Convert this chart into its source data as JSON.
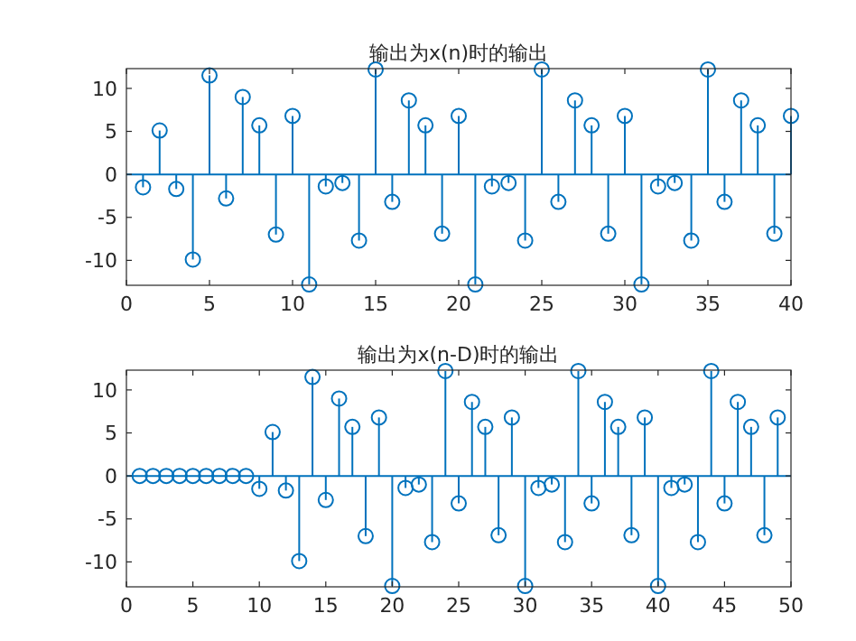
{
  "chart_data": [
    {
      "type": "lollipop",
      "title": "输出为x(n)时的输出",
      "x": [
        1,
        2,
        3,
        4,
        5,
        6,
        7,
        8,
        9,
        10,
        11,
        12,
        13,
        14,
        15,
        16,
        17,
        18,
        19,
        20,
        21,
        22,
        23,
        24,
        25,
        26,
        27,
        28,
        29,
        30,
        31,
        32,
        33,
        34,
        35,
        36,
        37,
        38,
        39,
        40
      ],
      "series": [
        {
          "color": "#0072bd",
          "values": [
            -1.5,
            5.1,
            -1.7,
            -9.9,
            11.5,
            -2.8,
            9.0,
            5.7,
            -7.0,
            6.8,
            -12.8,
            -1.4,
            -1.0,
            -7.7,
            12.2,
            -3.2,
            8.6,
            5.7,
            -6.9,
            6.8,
            -12.8,
            -1.4,
            -1.0,
            -7.7,
            12.2,
            -3.2,
            8.6,
            5.7,
            -6.9,
            6.8,
            -12.8,
            -1.4,
            -1.0,
            -7.7,
            12.2,
            -3.2,
            8.6,
            5.7,
            -6.9,
            6.8
          ]
        }
      ],
      "marker": "circle",
      "xlim": [
        0,
        40
      ],
      "xticks": [
        0,
        5,
        10,
        15,
        20,
        25,
        30,
        35,
        40
      ],
      "ylim": [
        -12.9,
        12.3
      ],
      "yticks": [
        -10,
        -5,
        0,
        5,
        10
      ],
      "ref_lines": [
        {
          "axis": "y",
          "value": 0,
          "color": "#0072bd"
        }
      ]
    },
    {
      "type": "lollipop",
      "title": "输出为x(n-D)时的输出",
      "x": [
        1,
        2,
        3,
        4,
        5,
        6,
        7,
        8,
        9,
        10,
        11,
        12,
        13,
        14,
        15,
        16,
        17,
        18,
        19,
        20,
        21,
        22,
        23,
        24,
        25,
        26,
        27,
        28,
        29,
        30,
        31,
        32,
        33,
        34,
        35,
        36,
        37,
        38,
        39,
        40,
        41,
        42,
        43,
        44,
        45,
        46,
        47,
        48,
        49
      ],
      "series": [
        {
          "color": "#0072bd",
          "values": [
            0,
            0,
            0,
            0,
            0,
            0,
            0,
            0,
            0,
            -1.5,
            5.1,
            -1.7,
            -9.9,
            11.5,
            -2.8,
            9.0,
            5.7,
            -7.0,
            6.8,
            -12.8,
            -1.4,
            -1.0,
            -7.7,
            12.2,
            -3.2,
            8.6,
            5.7,
            -6.9,
            6.8,
            -12.8,
            -1.4,
            -1.0,
            -7.7,
            12.2,
            -3.2,
            8.6,
            5.7,
            -6.9,
            6.8,
            -12.8,
            -1.4,
            -1.0,
            -7.7,
            12.2,
            -3.2,
            8.6,
            5.7,
            -6.9,
            6.8
          ]
        }
      ],
      "marker": "circle",
      "xlim": [
        0,
        50
      ],
      "xticks": [
        0,
        5,
        10,
        15,
        20,
        25,
        30,
        35,
        40,
        45,
        50
      ],
      "ylim": [
        -12.9,
        12.3
      ],
      "yticks": [
        -10,
        -5,
        0,
        5,
        10
      ],
      "ref_lines": [
        {
          "axis": "y",
          "value": 0,
          "color": "#0072bd"
        }
      ]
    }
  ]
}
